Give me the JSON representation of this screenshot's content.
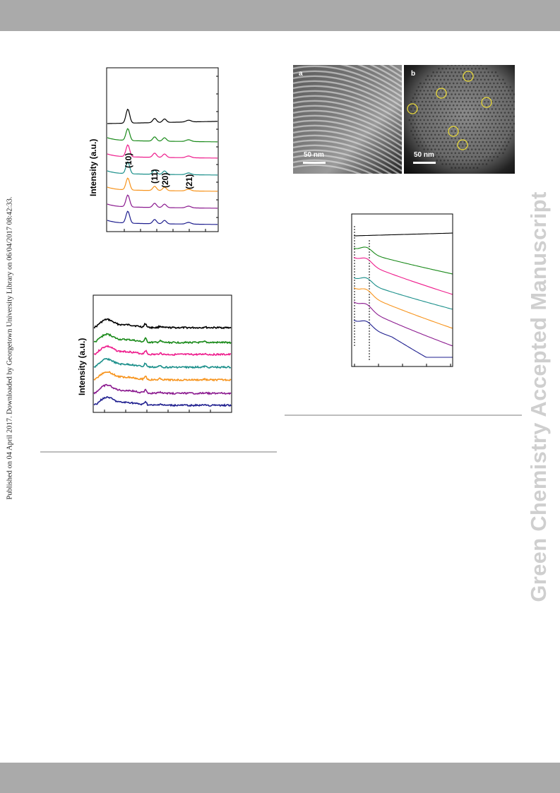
{
  "header": {
    "background": "#aaaaaa"
  },
  "footer": {
    "background": "#aaaaaa"
  },
  "side_note": "Published on 04 April 2017. Downloaded by Georgetown University Library on 06/04/2017 08:42:33.",
  "watermark": "Green Chemistry Accepted Manuscript",
  "series_colors": [
    "#000000",
    "#1a8a1a",
    "#ee1c8c",
    "#1a8f8a",
    "#f7941d",
    "#8b1a8f",
    "#1f1f8f"
  ],
  "chart_data": [
    {
      "type": "line",
      "title": "",
      "xlabel": "",
      "ylabel": "Intensity (a.u.)",
      "peak_labels": [
        "(10)",
        "(11)",
        "(20)",
        "(21)"
      ],
      "series_count": 7
    },
    {
      "type": "line",
      "title": "",
      "xlabel": "",
      "ylabel": "Intensity (a.u.)",
      "series_count": 7
    },
    {
      "type": "line",
      "title": "",
      "xlabel": "",
      "ylabel": "",
      "series_count": 7
    }
  ],
  "figure": {
    "panel_a_label": "a",
    "panel_b_label": "b",
    "scale_a": "50 nm",
    "scale_b": "50 nm"
  }
}
